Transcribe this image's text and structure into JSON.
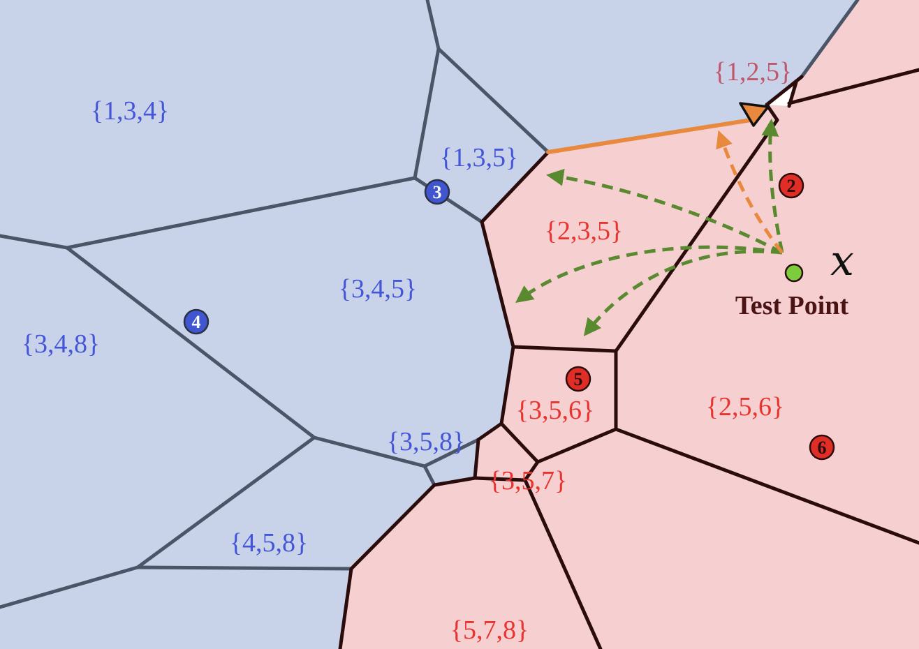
{
  "colors": {
    "blue_region": "#c8d3ea",
    "red_region": "#f6cfd0",
    "blue_edge": "#4b5568",
    "red_edge": "#2a0c0c",
    "label_blue": "#4455d8",
    "label_red": "#e8332e",
    "orange": "#e8893e",
    "green": "#5a8a30",
    "site_blue": "#4055d0",
    "site_red": "#e02e26",
    "test_point": "#7ccc3c"
  },
  "regions": {
    "r134": "{1,3,4}",
    "r135": "{1,3,5}",
    "r125": "{1,2,5}",
    "r235": "{2,3,5}",
    "r345": "{3,4,5}",
    "r348": "{3,4,8}",
    "r356": "{3,5,6}",
    "r256": "{2,5,6}",
    "r358": "{3,5,8}",
    "r357": "{3,5,7}",
    "r458": "{4,5,8}",
    "r578": "{5,7,8}"
  },
  "sites": {
    "s2": "2",
    "s3": "3",
    "s4": "4",
    "s5": "5",
    "s6": "6"
  },
  "test_point": {
    "symbol": "x",
    "label": "Test Point"
  }
}
